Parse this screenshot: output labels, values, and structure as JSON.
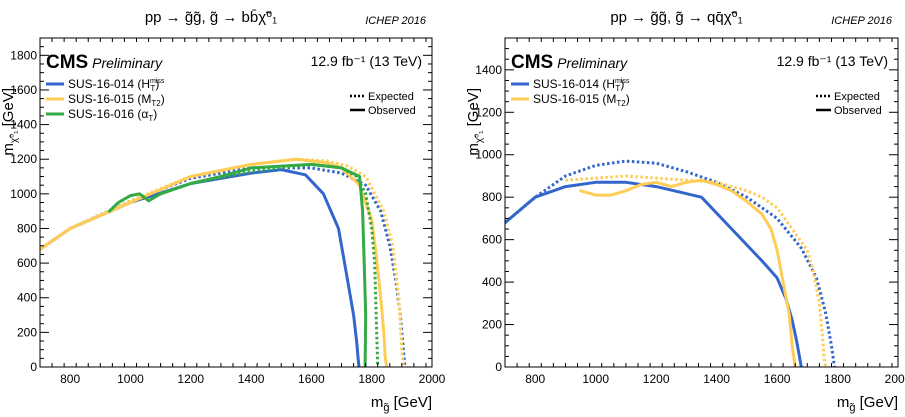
{
  "chart_data": [
    {
      "type": "line",
      "title": "pp → g̃g̃,  g̃ → bb̄χ̃⁰₁",
      "conference": "ICHEP 2016",
      "experiment": "CMS",
      "status": "Preliminary",
      "lumi": "12.9 fb⁻¹ (13 TeV)",
      "xlabel": "m_g̃ [GeV]",
      "ylabel": "m_χ̃⁰₁ [GeV]",
      "xlim": [
        700,
        2000
      ],
      "ylim": [
        0,
        1900
      ],
      "xticks": [
        800,
        1000,
        1200,
        1400,
        1600,
        1800,
        2000
      ],
      "yticks": [
        0,
        200,
        400,
        600,
        800,
        1000,
        1200,
        1400,
        1600,
        1800
      ],
      "grid": false,
      "legend_position": "top-left",
      "style_legend": [
        {
          "label": "Expected",
          "style": "dotted"
        },
        {
          "label": "Observed",
          "style": "solid"
        }
      ],
      "series": [
        {
          "name": "SUS-16-014 (H",
          "name_sub": "T",
          "name_sup": "miss",
          "name_end": ")",
          "color": "#3366cc",
          "observed": {
            "x": [
              700,
              800,
              1000,
              1200,
              1400,
              1500,
              1580,
              1640,
              1690,
              1720,
              1740,
              1750,
              1755,
              1758
            ],
            "y": [
              680,
              800,
              950,
              1060,
              1120,
              1140,
              1110,
              1000,
              800,
              500,
              300,
              150,
              50,
              0
            ]
          },
          "expected": {
            "x": [
              700,
              800,
              1000,
              1200,
              1400,
              1600,
              1700,
              1780,
              1830,
              1860,
              1880,
              1895,
              1905,
              1910
            ],
            "y": [
              680,
              800,
              960,
              1090,
              1150,
              1150,
              1120,
              1050,
              900,
              700,
              500,
              300,
              100,
              0
            ]
          }
        },
        {
          "name": "SUS-16-015 (M",
          "name_sub": "T2",
          "name_sup": "",
          "name_end": ")",
          "color": "#ffcc55",
          "observed": {
            "x": [
              700,
              800,
              1000,
              1200,
              1400,
              1550,
              1650,
              1700,
              1760,
              1800,
              1815,
              1830,
              1840,
              1845,
              1850
            ],
            "y": [
              680,
              800,
              950,
              1100,
              1170,
              1200,
              1180,
              1150,
              1050,
              850,
              650,
              400,
              200,
              50,
              0
            ]
          },
          "expected": {
            "x": [
              700,
              800,
              1000,
              1200,
              1400,
              1550,
              1650,
              1720,
              1780,
              1840,
              1870,
              1890,
              1900,
              1905
            ],
            "y": [
              680,
              800,
              960,
              1100,
              1170,
              1200,
              1190,
              1160,
              1100,
              900,
              700,
              400,
              100,
              0
            ]
          }
        },
        {
          "name": "SUS-16-016 (α",
          "name_sub": "T",
          "name_sup": "",
          "name_end": ")",
          "color": "#33aa44",
          "observed": {
            "x": [
              930,
              960,
              1000,
              1030,
              1060,
              1100,
              1200,
              1300,
              1400,
              1500,
              1600,
              1700,
              1760,
              1770,
              1775,
              1780,
              1778
            ],
            "y": [
              900,
              950,
              990,
              1000,
              960,
              1000,
              1060,
              1100,
              1150,
              1160,
              1170,
              1150,
              1100,
              900,
              600,
              300,
              0
            ]
          },
          "expected": {
            "x": [
              1100,
              1200,
              1400,
              1600,
              1700,
              1750,
              1780,
              1800,
              1810,
              1815,
              1820
            ],
            "y": [
              1000,
              1060,
              1130,
              1170,
              1150,
              1100,
              1000,
              800,
              600,
              300,
              0
            ]
          }
        }
      ]
    },
    {
      "type": "line",
      "title": "pp → g̃g̃,  g̃ → qq̄χ̃⁰₁",
      "conference": "ICHEP 2016",
      "experiment": "CMS",
      "status": "Preliminary",
      "lumi": "12.9 fb⁻¹ (13 TeV)",
      "xlabel": "m_g̃ [GeV]",
      "ylabel": "m_χ̃⁰₁ [GeV]",
      "xlim": [
        700,
        2000
      ],
      "ylim": [
        0,
        1550
      ],
      "xticks": [
        800,
        1000,
        1200,
        1400,
        1600,
        1800,
        2000
      ],
      "yticks": [
        0,
        200,
        400,
        600,
        800,
        1000,
        1200,
        1400
      ],
      "grid": false,
      "legend_position": "top-left",
      "style_legend": [
        {
          "label": "Expected",
          "style": "dotted"
        },
        {
          "label": "Observed",
          "style": "solid"
        }
      ],
      "series": [
        {
          "name": "SUS-16-014 (H",
          "name_sub": "T",
          "name_sup": "miss",
          "name_end": ")",
          "color": "#3366cc",
          "observed": {
            "x": [
              700,
              800,
              900,
              1000,
              1100,
              1200,
              1350,
              1450,
              1550,
              1600,
              1630,
              1650,
              1665,
              1675,
              1680
            ],
            "y": [
              680,
              800,
              850,
              870,
              870,
              850,
              800,
              650,
              500,
              420,
              320,
              220,
              120,
              40,
              0
            ]
          },
          "expected": {
            "x": [
              700,
              800,
              900,
              1000,
              1100,
              1200,
              1300,
              1400,
              1500,
              1600,
              1680,
              1730,
              1760,
              1780,
              1790
            ],
            "y": [
              680,
              800,
              900,
              950,
              970,
              960,
              920,
              870,
              800,
              700,
              560,
              420,
              260,
              100,
              0
            ]
          }
        },
        {
          "name": "SUS-16-015 (M",
          "name_sub": "T2",
          "name_sup": "",
          "name_end": ")",
          "color": "#ffcc55",
          "observed": {
            "x": [
              950,
              1000,
              1050,
              1100,
              1150,
              1200,
              1250,
              1300,
              1350,
              1400,
              1450,
              1500,
              1550,
              1580,
              1600,
              1620,
              1640,
              1650,
              1660
            ],
            "y": [
              830,
              810,
              810,
              830,
              860,
              870,
              850,
              870,
              880,
              860,
              830,
              780,
              720,
              650,
              550,
              400,
              250,
              100,
              0
            ]
          },
          "expected": {
            "x": [
              900,
              1000,
              1100,
              1200,
              1300,
              1400,
              1500,
              1550,
              1600,
              1650,
              1700,
              1720,
              1740,
              1750,
              1755,
              1760
            ],
            "y": [
              880,
              890,
              900,
              890,
              880,
              870,
              830,
              800,
              750,
              650,
              550,
              450,
              300,
              150,
              50,
              0
            ]
          }
        }
      ]
    }
  ]
}
